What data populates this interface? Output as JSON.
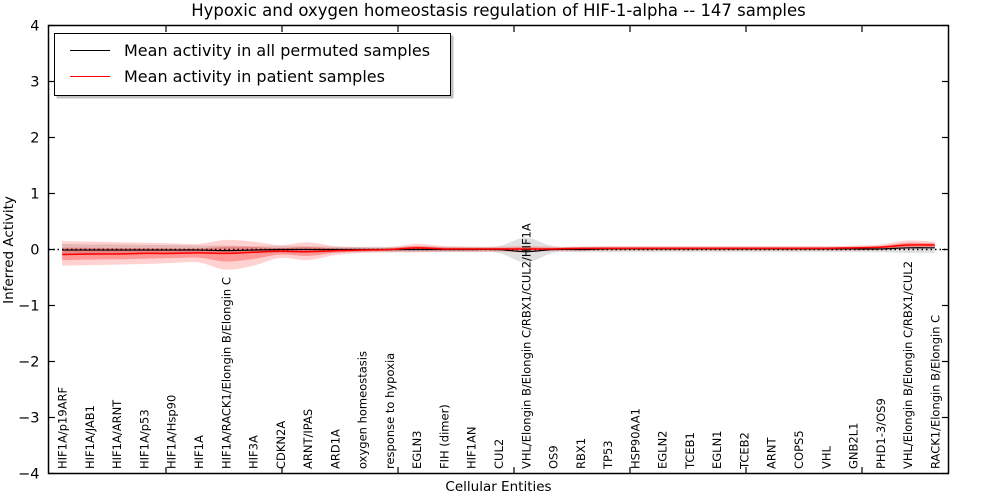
{
  "title": "Hypoxic and oxygen homeostasis regulation of HIF-1-alpha -- 147 samples",
  "axes": {
    "xlabel": "Cellular Entities",
    "ylabel": "Inferred Activity"
  },
  "legend": {
    "items": [
      {
        "label": "Mean activity in all permuted samples",
        "color": "#000000"
      },
      {
        "label": "Mean activity in patient samples",
        "color": "#ff0000"
      }
    ]
  },
  "colors": {
    "permuted_line": "#000000",
    "patient_line": "#ff0000",
    "permuted_band": "#999999",
    "patient_band": "#ff0000",
    "zero_line": "#000000"
  },
  "chart_data": {
    "type": "line",
    "title": "Hypoxic and oxygen homeostasis regulation of HIF-1-alpha -- 147 samples",
    "xlabel": "Cellular Entities",
    "ylabel": "Inferred Activity",
    "ylim": [
      -4,
      4
    ],
    "yticks": [
      -4,
      -3,
      -2,
      -1,
      0,
      1,
      2,
      3,
      4
    ],
    "grid": false,
    "legend_position": "upper left",
    "categories": [
      "HIF1A/p19ARF",
      "HIF1A/JAB1",
      "HIF1A/ARNT",
      "HIF1A/p53",
      "HIF1A/Hsp90",
      "HIF1A",
      "HIF1A/RACK1/Elongin B/Elongin C",
      "HIF3A",
      "CDKN2A",
      "ARNT/IPAS",
      "ARD1A",
      "oxygen homeostasis",
      "response to hypoxia",
      "EGLN3",
      "FIH (dimer)",
      "HIF1AN",
      "CUL2",
      "VHL/Elongin B/Elongin C/RBX1/CUL2/HIF1A",
      "OS9",
      "RBX1",
      "TP53",
      "HSP90AA1",
      "EGLN2",
      "TCEB1",
      "EGLN1",
      "TCEB2",
      "ARNT",
      "COPS5",
      "VHL",
      "GNB2L1",
      "PHD1-3/OS9",
      "VHL/Elongin B/Elongin C/RBX1/CUL2",
      "RACK1/Elongin B/Elongin C"
    ],
    "series": [
      {
        "name": "Mean activity in all permuted samples",
        "color": "#000000",
        "values": [
          -0.01,
          -0.01,
          -0.01,
          -0.01,
          -0.01,
          -0.01,
          -0.02,
          -0.01,
          0,
          0,
          0,
          0,
          0,
          0,
          0,
          0,
          0,
          -0.04,
          0,
          0,
          0.01,
          0.01,
          0.01,
          0.01,
          0.01,
          0.01,
          0.01,
          0.01,
          0.01,
          0.01,
          0.01,
          0.03,
          0.03
        ]
      },
      {
        "name": "Mean activity in patient samples",
        "color": "#ff0000",
        "values": [
          -0.09,
          -0.08,
          -0.08,
          -0.07,
          -0.07,
          -0.06,
          -0.07,
          -0.05,
          -0.03,
          -0.04,
          -0.02,
          -0.01,
          0,
          0.03,
          0.01,
          0.01,
          0.01,
          0.01,
          0.01,
          0.02,
          0.02,
          0.02,
          0.02,
          0.02,
          0.02,
          0.02,
          0.02,
          0.02,
          0.02,
          0.03,
          0.04,
          0.08,
          0.08
        ]
      }
    ],
    "bands": [
      {
        "name": "permuted samples range",
        "color": "#999999",
        "opacity": 0.3,
        "hi": [
          0.1,
          0.09,
          0.09,
          0.08,
          0.08,
          0.07,
          0.07,
          0.06,
          0.06,
          0.06,
          0.05,
          0.05,
          0.05,
          0.05,
          0.05,
          0.05,
          0.06,
          0.21,
          0.06,
          0.05,
          0.05,
          0.05,
          0.05,
          0.05,
          0.05,
          0.05,
          0.05,
          0.05,
          0.05,
          0.05,
          0.05,
          0.06,
          0.06
        ],
        "lo": [
          -0.1,
          -0.09,
          -0.09,
          -0.08,
          -0.08,
          -0.07,
          -0.07,
          -0.06,
          -0.06,
          -0.06,
          -0.05,
          -0.05,
          -0.05,
          -0.05,
          -0.05,
          -0.05,
          -0.06,
          -0.23,
          -0.06,
          -0.05,
          -0.05,
          -0.05,
          -0.05,
          -0.05,
          -0.05,
          -0.05,
          -0.05,
          -0.05,
          -0.05,
          -0.05,
          -0.05,
          -0.06,
          -0.06
        ]
      },
      {
        "name": "patient samples range",
        "color": "#ff0000",
        "opacity": 0.18,
        "hi": [
          0.15,
          0.14,
          0.13,
          0.12,
          0.11,
          0.1,
          0.17,
          0.14,
          0.08,
          0.13,
          0.06,
          0.04,
          0.04,
          0.1,
          0.06,
          0.05,
          0.05,
          0.06,
          0.05,
          0.05,
          0.06,
          0.06,
          0.06,
          0.06,
          0.06,
          0.06,
          0.06,
          0.06,
          0.06,
          0.07,
          0.09,
          0.16,
          0.14
        ],
        "lo": [
          -0.29,
          -0.28,
          -0.27,
          -0.26,
          -0.24,
          -0.23,
          -0.36,
          -0.29,
          -0.15,
          -0.19,
          -0.1,
          -0.06,
          -0.05,
          -0.05,
          -0.04,
          -0.04,
          -0.04,
          -0.05,
          -0.03,
          -0.03,
          -0.02,
          -0.02,
          -0.02,
          -0.02,
          -0.02,
          -0.02,
          -0.02,
          -0.02,
          -0.02,
          -0.02,
          -0.01,
          0.01,
          0.02
        ]
      }
    ],
    "zero_line": {
      "y": 0,
      "style": "dotted"
    }
  }
}
